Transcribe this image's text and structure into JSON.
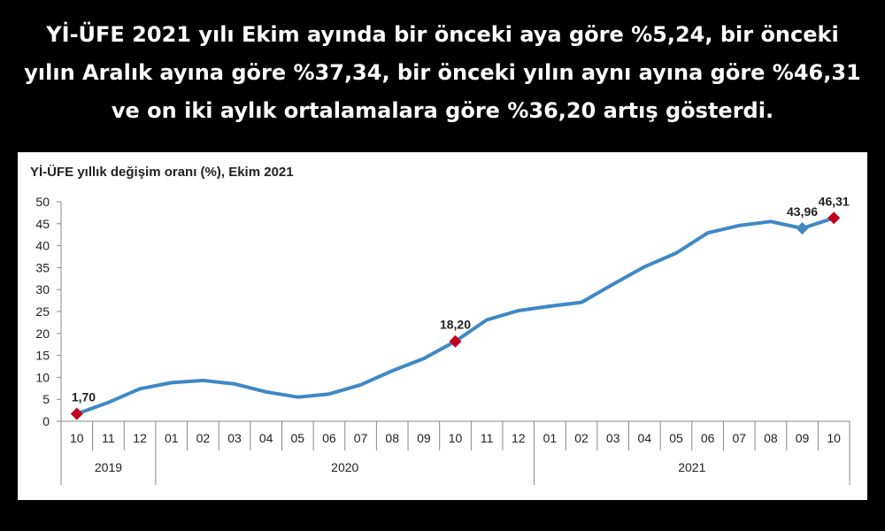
{
  "headline": "Yİ-ÜFE 2021 yılı Ekim ayında bir önceki aya göre %5,24, bir önceki yılın Aralık ayına göre %37,34, bir önceki yılın aynı ayına göre %46,31 ve on iki aylık ortalamalara göre %36,20 artış gösterdi.",
  "chart_data": {
    "type": "line",
    "title": "Yİ-ÜFE yıllık değişim oranı (%), Ekim 2021",
    "xlabel": "",
    "ylabel": "",
    "ylim": [
      0,
      50
    ],
    "yticks": [
      "0",
      "5",
      "10",
      "15",
      "20",
      "25",
      "30",
      "35",
      "40",
      "45",
      "50"
    ],
    "categories": [
      "10",
      "11",
      "12",
      "01",
      "02",
      "03",
      "04",
      "05",
      "06",
      "07",
      "08",
      "09",
      "10",
      "11",
      "12",
      "01",
      "02",
      "03",
      "04",
      "05",
      "06",
      "07",
      "08",
      "09",
      "10"
    ],
    "years": [
      {
        "label": "2019",
        "count": 3
      },
      {
        "label": "2020",
        "count": 12
      },
      {
        "label": "2021",
        "count": 10
      }
    ],
    "series": [
      {
        "values": [
          1.7,
          4.3,
          7.4,
          8.8,
          9.3,
          8.5,
          6.7,
          5.5,
          6.2,
          8.3,
          11.5,
          14.3,
          18.2,
          23.1,
          25.2,
          26.2,
          27.1,
          31.2,
          35.2,
          38.3,
          42.9,
          44.6,
          45.5,
          43.96,
          46.31
        ],
        "color": "#3f88c5"
      }
    ],
    "annotations": [
      {
        "index": 0,
        "label": "1,70",
        "marker": "diamond",
        "color": "#c0001a"
      },
      {
        "index": 12,
        "label": "18,20",
        "marker": "diamond",
        "color": "#c0001a"
      },
      {
        "index": 23,
        "label": "43,96",
        "marker": "diamond",
        "color": "#3f88c5"
      },
      {
        "index": 24,
        "label": "46,31",
        "marker": "diamond",
        "color": "#c0001a"
      }
    ],
    "grid": false,
    "legend": "none"
  }
}
